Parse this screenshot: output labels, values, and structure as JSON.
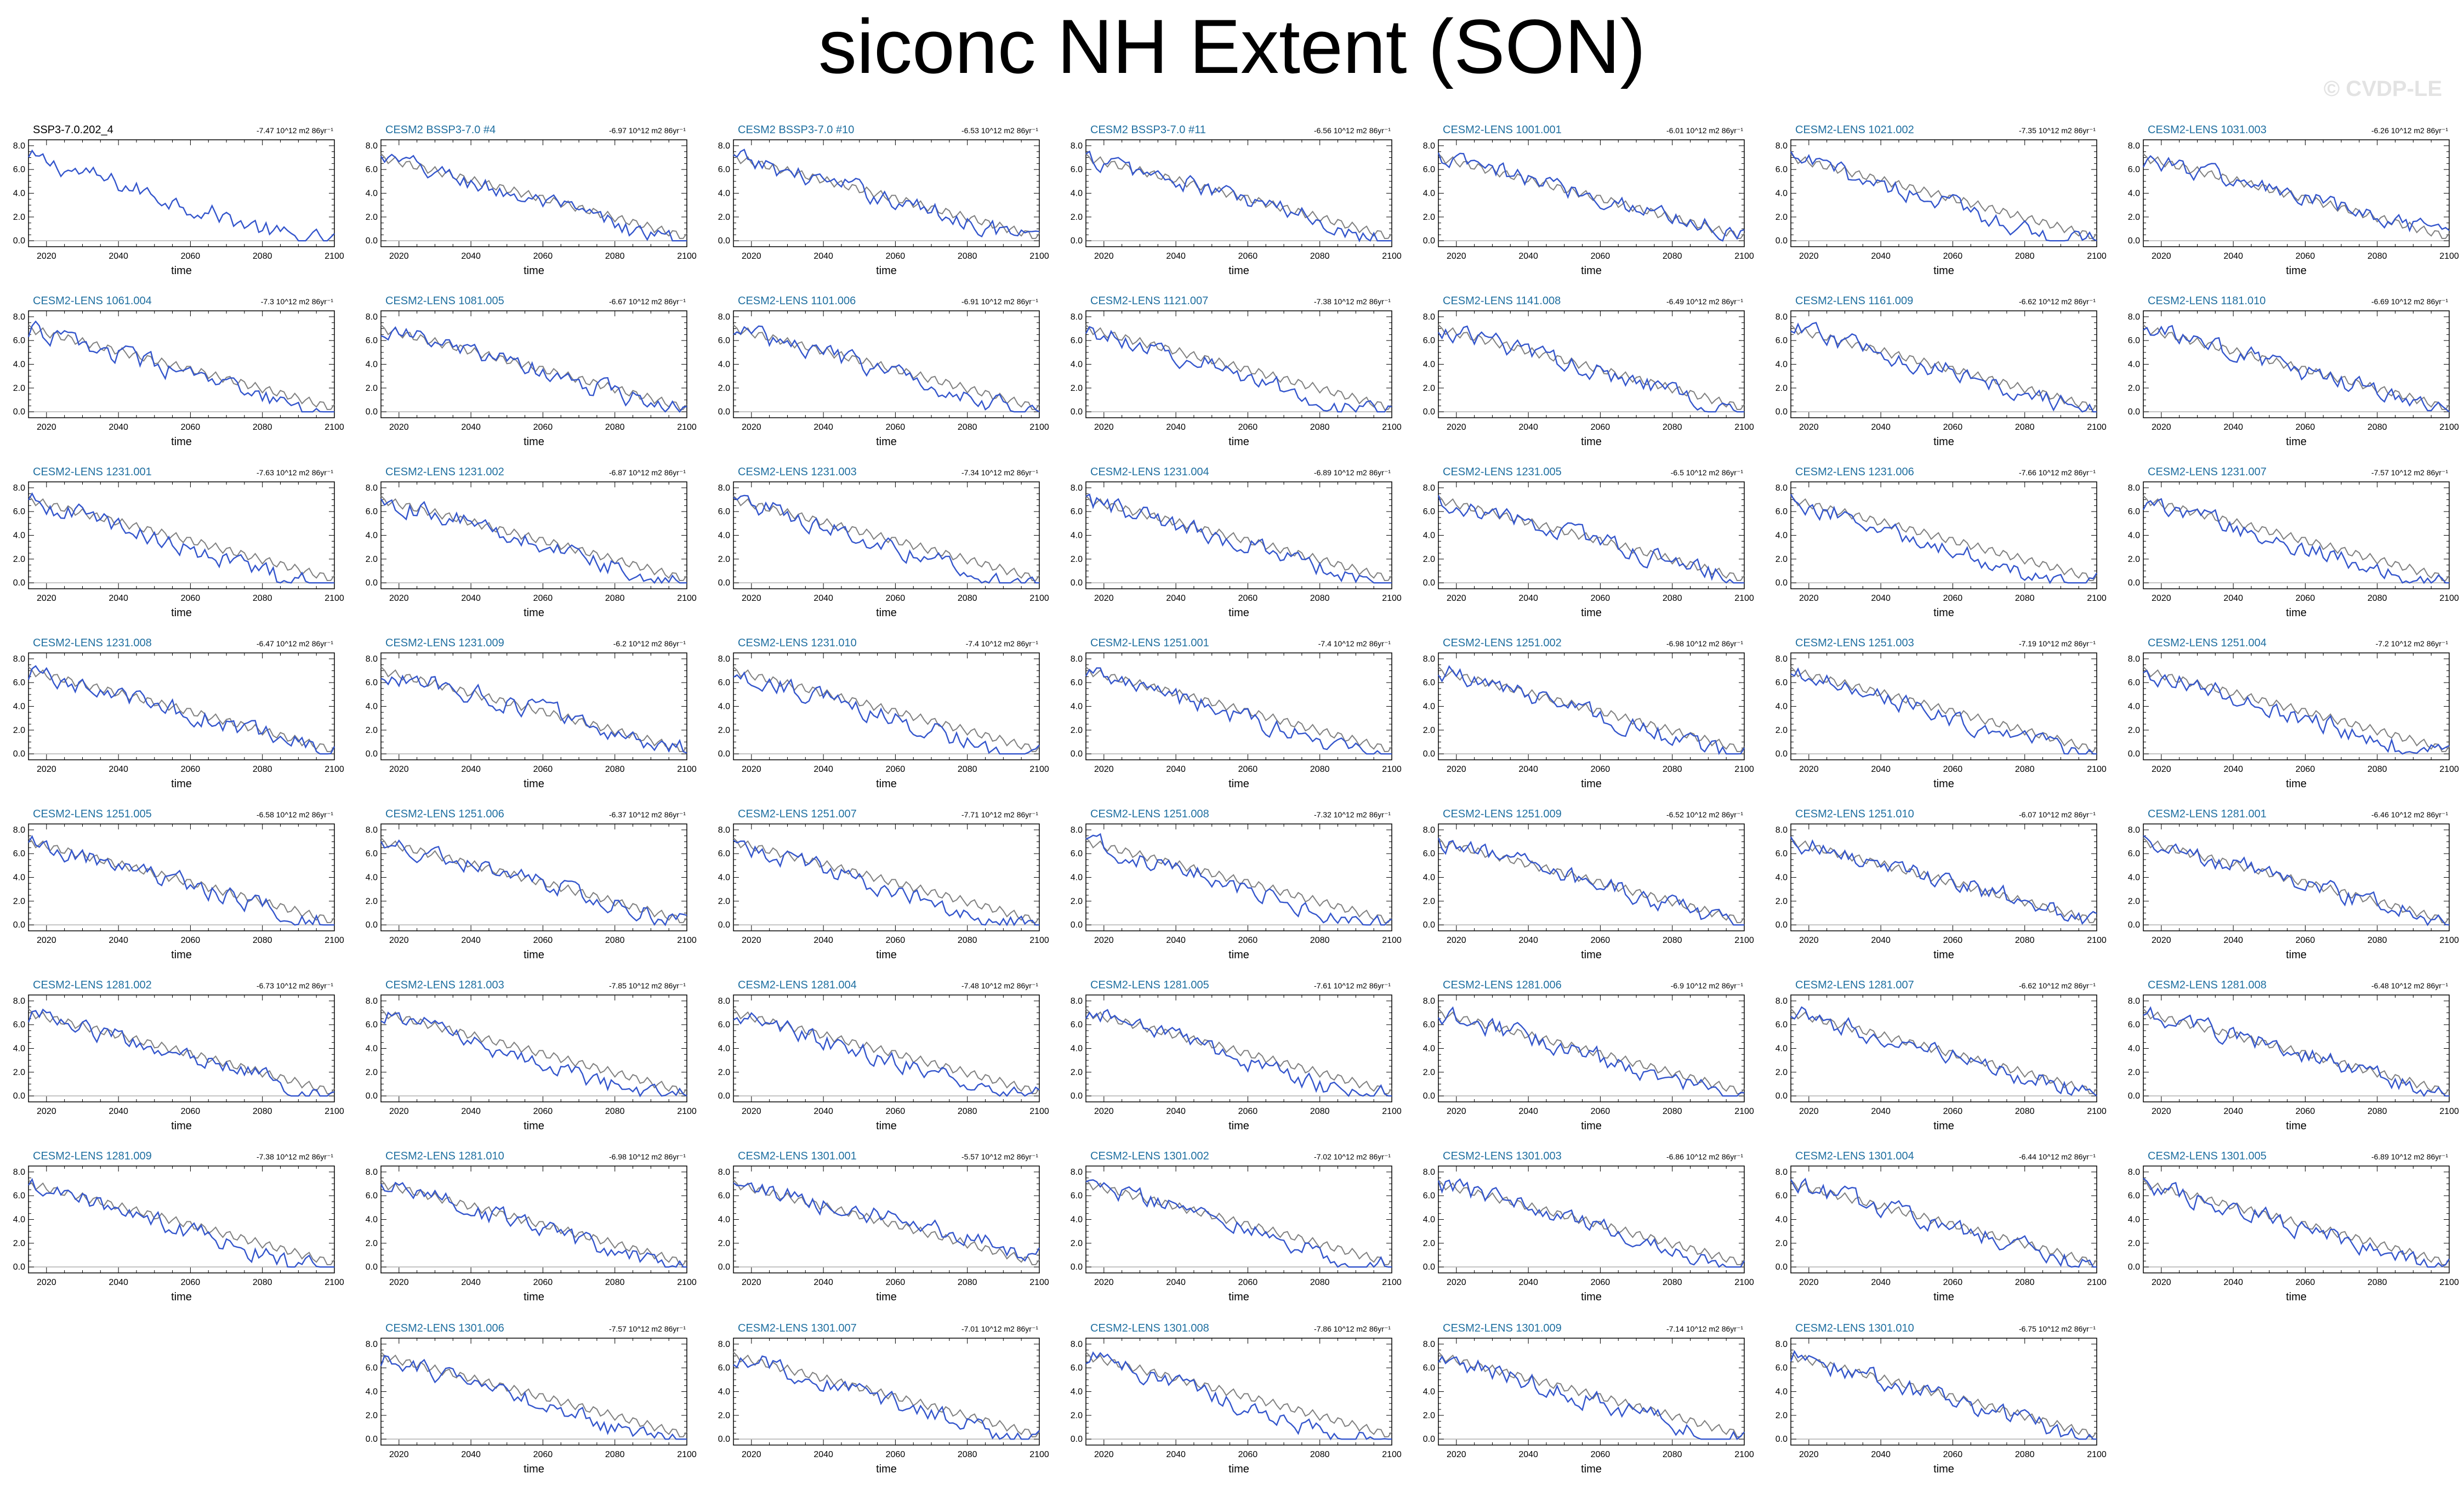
{
  "page": {
    "title": "siconc NH Extent (SON)",
    "watermark": "© CVDP-LE"
  },
  "chart_data": {
    "type": "line",
    "xlabel": "time",
    "xlim": [
      2015,
      2100
    ],
    "ylim": [
      -0.5,
      8.5
    ],
    "x_ticks": [
      "2020",
      "2040",
      "2060",
      "2080",
      "2100"
    ],
    "y_ticks": [
      "0.0",
      "2.0",
      "4.0",
      "6.0",
      "8.0"
    ],
    "colors": {
      "member": "#3355cc",
      "ensemble_mean": "#808080",
      "zero_line": "#b0b0b0",
      "obs_title": "#000000",
      "member_title": "#1f6fa0"
    },
    "panels": [
      {
        "title": "SSP3-7.0.202_4",
        "trend": "-7.47 10^12 m2 86yr⁻¹",
        "row": 0,
        "col": 0,
        "observation": true
      },
      {
        "title": "CESM2 BSSP3-7.0 #4",
        "trend": "-6.97 10^12 m2 86yr⁻¹",
        "row": 0,
        "col": 1
      },
      {
        "title": "CESM2 BSSP3-7.0 #10",
        "trend": "-6.53 10^12 m2 86yr⁻¹",
        "row": 0,
        "col": 2
      },
      {
        "title": "CESM2 BSSP3-7.0 #11",
        "trend": "-6.56 10^12 m2 86yr⁻¹",
        "row": 0,
        "col": 3
      },
      {
        "title": "CESM2-LENS 1001.001",
        "trend": "-6.01 10^12 m2 86yr⁻¹",
        "row": 0,
        "col": 4
      },
      {
        "title": "CESM2-LENS 1021.002",
        "trend": "-7.35 10^12 m2 86yr⁻¹",
        "row": 0,
        "col": 5
      },
      {
        "title": "CESM2-LENS 1031.003",
        "trend": "-6.26 10^12 m2 86yr⁻¹",
        "row": 0,
        "col": 6
      },
      {
        "title": "CESM2-LENS 1061.004",
        "trend": "-7.3 10^12 m2 86yr⁻¹",
        "row": 1,
        "col": 0
      },
      {
        "title": "CESM2-LENS 1081.005",
        "trend": "-6.67 10^12 m2 86yr⁻¹",
        "row": 1,
        "col": 1
      },
      {
        "title": "CESM2-LENS 1101.006",
        "trend": "-6.91 10^12 m2 86yr⁻¹",
        "row": 1,
        "col": 2
      },
      {
        "title": "CESM2-LENS 1121.007",
        "trend": "-7.38 10^12 m2 86yr⁻¹",
        "row": 1,
        "col": 3
      },
      {
        "title": "CESM2-LENS 1141.008",
        "trend": "-6.49 10^12 m2 86yr⁻¹",
        "row": 1,
        "col": 4
      },
      {
        "title": "CESM2-LENS 1161.009",
        "trend": "-6.62 10^12 m2 86yr⁻¹",
        "row": 1,
        "col": 5
      },
      {
        "title": "CESM2-LENS 1181.010",
        "trend": "-6.69 10^12 m2 86yr⁻¹",
        "row": 1,
        "col": 6
      },
      {
        "title": "CESM2-LENS 1231.001",
        "trend": "-7.63 10^12 m2 86yr⁻¹",
        "row": 2,
        "col": 0
      },
      {
        "title": "CESM2-LENS 1231.002",
        "trend": "-6.87 10^12 m2 86yr⁻¹",
        "row": 2,
        "col": 1
      },
      {
        "title": "CESM2-LENS 1231.003",
        "trend": "-7.34 10^12 m2 86yr⁻¹",
        "row": 2,
        "col": 2
      },
      {
        "title": "CESM2-LENS 1231.004",
        "trend": "-6.89 10^12 m2 86yr⁻¹",
        "row": 2,
        "col": 3
      },
      {
        "title": "CESM2-LENS 1231.005",
        "trend": "-6.5 10^12 m2 86yr⁻¹",
        "row": 2,
        "col": 4
      },
      {
        "title": "CESM2-LENS 1231.006",
        "trend": "-7.66 10^12 m2 86yr⁻¹",
        "row": 2,
        "col": 5
      },
      {
        "title": "CESM2-LENS 1231.007",
        "trend": "-7.57 10^12 m2 86yr⁻¹",
        "row": 2,
        "col": 6
      },
      {
        "title": "CESM2-LENS 1231.008",
        "trend": "-6.47 10^12 m2 86yr⁻¹",
        "row": 3,
        "col": 0
      },
      {
        "title": "CESM2-LENS 1231.009",
        "trend": "-6.2 10^12 m2 86yr⁻¹",
        "row": 3,
        "col": 1
      },
      {
        "title": "CESM2-LENS 1231.010",
        "trend": "-7.4 10^12 m2 86yr⁻¹",
        "row": 3,
        "col": 2
      },
      {
        "title": "CESM2-LENS 1251.001",
        "trend": "-7.4 10^12 m2 86yr⁻¹",
        "row": 3,
        "col": 3
      },
      {
        "title": "CESM2-LENS 1251.002",
        "trend": "-6.98 10^12 m2 86yr⁻¹",
        "row": 3,
        "col": 4
      },
      {
        "title": "CESM2-LENS 1251.003",
        "trend": "-7.19 10^12 m2 86yr⁻¹",
        "row": 3,
        "col": 5
      },
      {
        "title": "CESM2-LENS 1251.004",
        "trend": "-7.2 10^12 m2 86yr⁻¹",
        "row": 3,
        "col": 6
      },
      {
        "title": "CESM2-LENS 1251.005",
        "trend": "-6.58 10^12 m2 86yr⁻¹",
        "row": 4,
        "col": 0
      },
      {
        "title": "CESM2-LENS 1251.006",
        "trend": "-6.37 10^12 m2 86yr⁻¹",
        "row": 4,
        "col": 1
      },
      {
        "title": "CESM2-LENS 1251.007",
        "trend": "-7.71 10^12 m2 86yr⁻¹",
        "row": 4,
        "col": 2
      },
      {
        "title": "CESM2-LENS 1251.008",
        "trend": "-7.32 10^12 m2 86yr⁻¹",
        "row": 4,
        "col": 3
      },
      {
        "title": "CESM2-LENS 1251.009",
        "trend": "-6.52 10^12 m2 86yr⁻¹",
        "row": 4,
        "col": 4
      },
      {
        "title": "CESM2-LENS 1251.010",
        "trend": "-6.07 10^12 m2 86yr⁻¹",
        "row": 4,
        "col": 5
      },
      {
        "title": "CESM2-LENS 1281.001",
        "trend": "-6.46 10^12 m2 86yr⁻¹",
        "row": 4,
        "col": 6
      },
      {
        "title": "CESM2-LENS 1281.002",
        "trend": "-6.73 10^12 m2 86yr⁻¹",
        "row": 5,
        "col": 0
      },
      {
        "title": "CESM2-LENS 1281.003",
        "trend": "-7.85 10^12 m2 86yr⁻¹",
        "row": 5,
        "col": 1
      },
      {
        "title": "CESM2-LENS 1281.004",
        "trend": "-7.48 10^12 m2 86yr⁻¹",
        "row": 5,
        "col": 2
      },
      {
        "title": "CESM2-LENS 1281.005",
        "trend": "-7.61 10^12 m2 86yr⁻¹",
        "row": 5,
        "col": 3
      },
      {
        "title": "CESM2-LENS 1281.006",
        "trend": "-6.9 10^12 m2 86yr⁻¹",
        "row": 5,
        "col": 4
      },
      {
        "title": "CESM2-LENS 1281.007",
        "trend": "-6.62 10^12 m2 86yr⁻¹",
        "row": 5,
        "col": 5
      },
      {
        "title": "CESM2-LENS 1281.008",
        "trend": "-6.48 10^12 m2 86yr⁻¹",
        "row": 5,
        "col": 6
      },
      {
        "title": "CESM2-LENS 1281.009",
        "trend": "-7.38 10^12 m2 86yr⁻¹",
        "row": 6,
        "col": 0
      },
      {
        "title": "CESM2-LENS 1281.010",
        "trend": "-6.98 10^12 m2 86yr⁻¹",
        "row": 6,
        "col": 1
      },
      {
        "title": "CESM2-LENS 1301.001",
        "trend": "-5.57 10^12 m2 86yr⁻¹",
        "row": 6,
        "col": 2
      },
      {
        "title": "CESM2-LENS 1301.002",
        "trend": "-7.02 10^12 m2 86yr⁻¹",
        "row": 6,
        "col": 3
      },
      {
        "title": "CESM2-LENS 1301.003",
        "trend": "-6.86 10^12 m2 86yr⁻¹",
        "row": 6,
        "col": 4
      },
      {
        "title": "CESM2-LENS 1301.004",
        "trend": "-6.44 10^12 m2 86yr⁻¹",
        "row": 6,
        "col": 5
      },
      {
        "title": "CESM2-LENS 1301.005",
        "trend": "-6.89 10^12 m2 86yr⁻¹",
        "row": 6,
        "col": 6
      },
      {
        "title": "CESM2-LENS 1301.006",
        "trend": "-7.57 10^12 m2 86yr⁻¹",
        "row": 7,
        "col": 1
      },
      {
        "title": "CESM2-LENS 1301.007",
        "trend": "-7.01 10^12 m2 86yr⁻¹",
        "row": 7,
        "col": 2
      },
      {
        "title": "CESM2-LENS 1301.008",
        "trend": "-7.86 10^12 m2 86yr⁻¹",
        "row": 7,
        "col": 3
      },
      {
        "title": "CESM2-LENS 1301.009",
        "trend": "-7.14 10^12 m2 86yr⁻¹",
        "row": 7,
        "col": 4
      },
      {
        "title": "CESM2-LENS 1301.010",
        "trend": "-6.75 10^12 m2 86yr⁻¹",
        "row": 7,
        "col": 5
      }
    ]
  }
}
